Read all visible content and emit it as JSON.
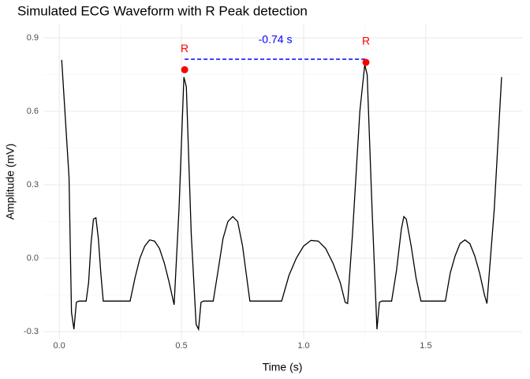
{
  "chart_data": {
    "type": "line",
    "title": "Simulated ECG Waveform with R Peak detection",
    "x_label": "Time (s)",
    "y_label": "Amplitude (mV)",
    "color": "#000000",
    "x": [
      0.01,
      0.04,
      0.05,
      0.06,
      0.07,
      0.08,
      0.11,
      0.12,
      0.13,
      0.14,
      0.15,
      0.16,
      0.17,
      0.18,
      0.29,
      0.31,
      0.33,
      0.35,
      0.37,
      0.39,
      0.41,
      0.43,
      0.45,
      0.47,
      0.49,
      0.51,
      0.52,
      0.54,
      0.56,
      0.57,
      0.58,
      0.59,
      0.63,
      0.65,
      0.67,
      0.69,
      0.71,
      0.73,
      0.75,
      0.77,
      0.78,
      0.91,
      0.94,
      0.97,
      1.0,
      1.03,
      1.06,
      1.09,
      1.12,
      1.15,
      1.17,
      1.18,
      1.2,
      1.23,
      1.25,
      1.26,
      1.28,
      1.3,
      1.31,
      1.32,
      1.36,
      1.38,
      1.4,
      1.41,
      1.42,
      1.44,
      1.46,
      1.48,
      1.58,
      1.6,
      1.62,
      1.64,
      1.66,
      1.68,
      1.7,
      1.72,
      1.74,
      1.75,
      1.78,
      1.81
    ],
    "values": [
      0.81,
      0.33,
      -0.22,
      -0.29,
      -0.18,
      -0.175,
      -0.175,
      -0.1,
      0.06,
      0.16,
      0.165,
      0.08,
      -0.06,
      -0.175,
      -0.175,
      -0.08,
      0.0,
      0.05,
      0.075,
      0.07,
      0.04,
      -0.02,
      -0.1,
      -0.19,
      0.2,
      0.74,
      0.7,
      0.1,
      -0.27,
      -0.29,
      -0.18,
      -0.175,
      -0.175,
      -0.05,
      0.08,
      0.15,
      0.17,
      0.15,
      0.05,
      -0.1,
      -0.175,
      -0.175,
      -0.07,
      0.0,
      0.05,
      0.073,
      0.07,
      0.04,
      -0.02,
      -0.1,
      -0.18,
      -0.185,
      0.1,
      0.6,
      0.79,
      0.75,
      0.2,
      -0.29,
      -0.18,
      -0.175,
      -0.175,
      -0.05,
      0.12,
      0.17,
      0.16,
      0.05,
      -0.08,
      -0.175,
      -0.175,
      -0.06,
      0.01,
      0.06,
      0.075,
      0.06,
      0.01,
      -0.06,
      -0.15,
      -0.185,
      0.2,
      0.74
    ],
    "peaks": {
      "x": [
        0.513,
        1.255
      ],
      "values": [
        0.77,
        0.8
      ],
      "labels": [
        "R",
        "R"
      ],
      "color": "#ff0000"
    },
    "interval": {
      "label": "-0.74 s",
      "color": "#0000ff"
    },
    "xlim": [
      -0.065,
      1.894
    ],
    "ylim": [
      -0.332,
      0.958
    ],
    "xticks": [
      {
        "value": 0,
        "label": "0.0"
      },
      0.5,
      {
        "value": 1,
        "label": "1.0"
      },
      1.5
    ],
    "yticks": [
      0.9,
      0.6,
      0.3,
      {
        "value": 0,
        "label": "0.0"
      },
      -0.3
    ],
    "grid": true
  }
}
